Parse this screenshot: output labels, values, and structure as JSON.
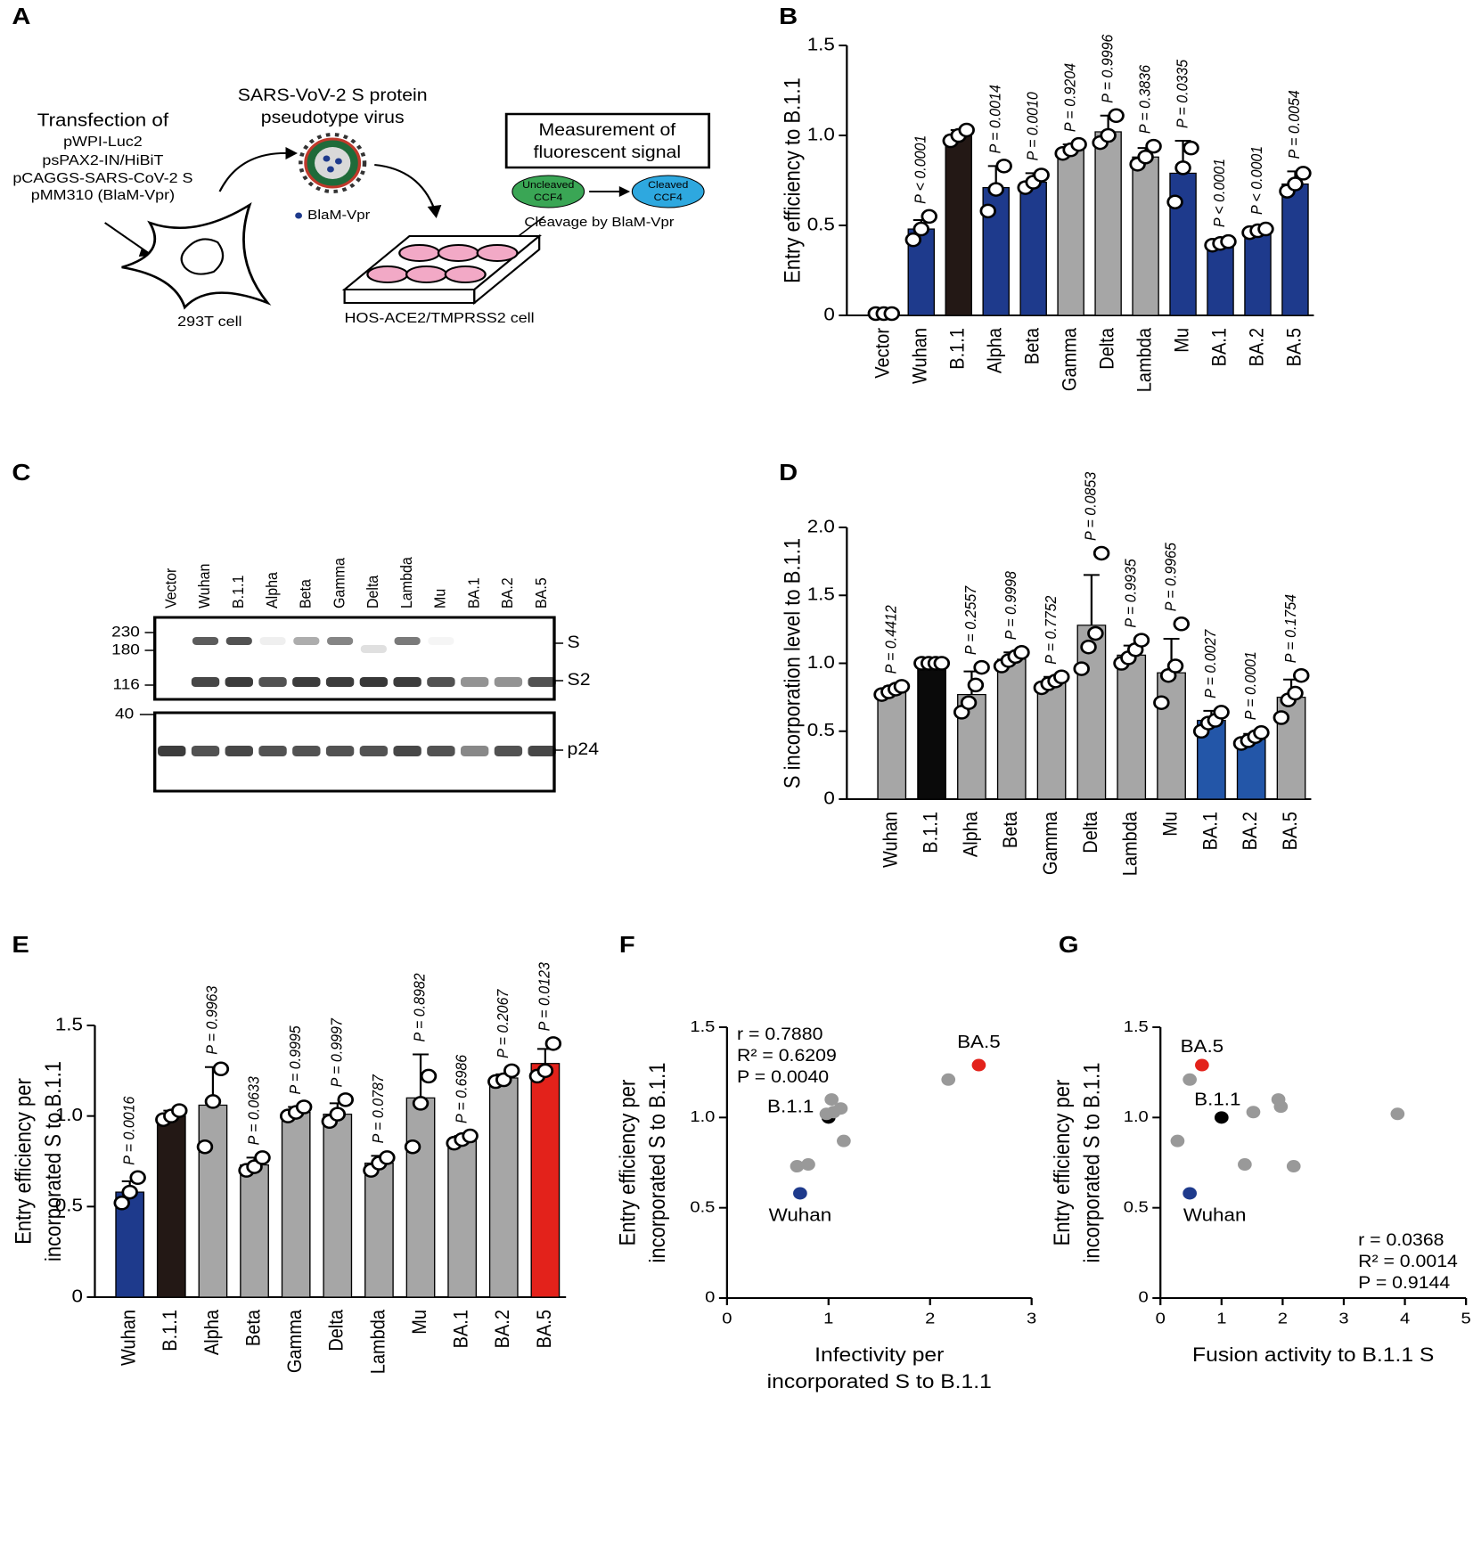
{
  "panel_labels": [
    "A",
    "B",
    "C",
    "D",
    "E",
    "F",
    "G"
  ],
  "diagram": {
    "transfection": "Transfection of",
    "plasmids": [
      "pWPI-Luc2",
      "psPAX2-IN/HiBiT",
      "pCAGGS-SARS-CoV-2 S",
      "pMM310 (BlaM-Vpr)"
    ],
    "virus": [
      "SARS-VoV-2 S protein",
      "pseudotype virus"
    ],
    "blam": "BlaM-Vpr",
    "measurement": [
      "Measurement of",
      "fluorescent signal"
    ],
    "uncleaved": [
      "Uncleaved",
      "CCF4"
    ],
    "cleaved": [
      "Cleaved",
      "CCF4"
    ],
    "cleavage": "Cleavage by BlaM-Vpr",
    "cell_293t": "293T cell",
    "hos": "HOS-ACE2/TMPRSS2 cell"
  },
  "blot": {
    "lanes": [
      "Vector",
      "Wuhan",
      "B.1.1",
      "Alpha",
      "Beta",
      "Gamma",
      "Delta",
      "Lambda",
      "Mu",
      "BA.1",
      "BA.2",
      "BA.5"
    ],
    "markers": [
      230,
      180,
      116,
      40
    ],
    "bands": [
      "S",
      "S2",
      "p24"
    ]
  },
  "chart_data": [
    {
      "type": "bar",
      "ylabel": "Entry efficiency to B.1.1",
      "categories": [
        "Vector",
        "Wuhan",
        "B.1.1",
        "Alpha",
        "Beta",
        "Gamma",
        "Delta",
        "Lambda",
        "Mu",
        "BA.1",
        "BA.2",
        "BA.5"
      ],
      "values": [
        0.01,
        0.48,
        1.0,
        0.71,
        0.74,
        0.92,
        1.02,
        0.88,
        0.79,
        0.4,
        0.47,
        0.73
      ],
      "errors": [
        null,
        0.05,
        0.03,
        0.12,
        0.05,
        0.03,
        0.09,
        0.05,
        0.18,
        0.02,
        0.02,
        0.07
      ],
      "points": [
        [
          0.01,
          0.01,
          0.01
        ],
        [
          0.42,
          0.48,
          0.55
        ],
        [
          0.97,
          1.0,
          1.03
        ],
        [
          0.58,
          0.7,
          0.83
        ],
        [
          0.71,
          0.74,
          0.78
        ],
        [
          0.9,
          0.92,
          0.95
        ],
        [
          0.96,
          1.0,
          1.11
        ],
        [
          0.84,
          0.88,
          0.94
        ],
        [
          0.63,
          0.82,
          0.93
        ],
        [
          0.39,
          0.4,
          0.41
        ],
        [
          0.46,
          0.47,
          0.48
        ],
        [
          0.69,
          0.73,
          0.79
        ]
      ],
      "colors": [
        "#ffffff",
        "#1e3a8c",
        "#231815",
        "#1e3a8c",
        "#1e3a8c",
        "#a6a6a6",
        "#a6a6a6",
        "#a6a6a6",
        "#1e3a8c",
        "#1e3a8c",
        "#1e3a8c",
        "#1e3a8c"
      ],
      "annotations": [
        null,
        "P < 0.0001",
        null,
        "P = 0.0014",
        "P = 0.0010",
        "P = 0.9204",
        "P = 0.9996",
        "P = 0.3836",
        "P = 0.0335",
        "P < 0.0001",
        "P < 0.0001",
        "P = 0.0054"
      ],
      "annotation_colors": [
        null,
        "#1e3a8c",
        null,
        "#1e3a8c",
        "#1e3a8c",
        "#999999",
        "#999999",
        "#999999",
        "#1e3a8c",
        "#1e3a8c",
        "#1e3a8c",
        "#1e3a8c"
      ],
      "ylim": [
        0,
        1.5
      ],
      "yticks": [
        0,
        0.5,
        {
          "value": 1,
          "label": "1.0"
        },
        1.5
      ]
    },
    {
      "type": "bar",
      "ylabel": "S incorporation level to B.1.1",
      "categories": [
        "Wuhan",
        "B.1.1",
        "Alpha",
        "Beta",
        "Gamma",
        "Delta",
        "Lambda",
        "Mu",
        "BA.1",
        "BA.2",
        "BA.5"
      ],
      "values": [
        0.8,
        1.0,
        0.77,
        1.03,
        0.86,
        1.28,
        1.06,
        0.93,
        0.58,
        0.44,
        0.75
      ],
      "errors": [
        0.03,
        0.01,
        0.17,
        0.05,
        0.04,
        0.37,
        0.07,
        0.25,
        0.07,
        0.04,
        0.13
      ],
      "points": [
        [
          0.77,
          0.79,
          0.81,
          0.83
        ],
        [
          1.0,
          1.0,
          1.0,
          1.0
        ],
        [
          0.64,
          0.71,
          0.84,
          0.97
        ],
        [
          0.98,
          1.02,
          1.05,
          1.08
        ],
        [
          0.82,
          0.85,
          0.87,
          0.9
        ],
        [
          0.96,
          1.12,
          1.22,
          1.81
        ],
        [
          1.0,
          1.04,
          1.1,
          1.17
        ],
        [
          0.71,
          0.91,
          0.98,
          1.29
        ],
        [
          0.5,
          0.56,
          0.58,
          0.64
        ],
        [
          0.41,
          0.43,
          0.46,
          0.49
        ],
        [
          0.6,
          0.73,
          0.78,
          0.91
        ]
      ],
      "colors": [
        "#a6a6a6",
        "#0a0a0a",
        "#a6a6a6",
        "#a6a6a6",
        "#a6a6a6",
        "#a6a6a6",
        "#a6a6a6",
        "#a6a6a6",
        "#2356a8",
        "#2356a8",
        "#a6a6a6"
      ],
      "annotations": [
        "P = 0.4412",
        null,
        "P = 0.2557",
        "P = 0.9998",
        "P = 0.7752",
        "P = 0.0853",
        "P = 0.9935",
        "P = 0.9965",
        "P = 0.0027",
        "P = 0.0001",
        "P = 0.1754"
      ],
      "annotation_colors": [
        "#999999",
        null,
        "#999999",
        "#999999",
        "#999999",
        "#999999",
        "#999999",
        "#999999",
        "#2356a8",
        "#2356a8",
        "#999999"
      ],
      "ylim": [
        0,
        2
      ],
      "yticks": [
        0,
        0.5,
        {
          "value": 1,
          "label": "1.0"
        },
        1.5,
        {
          "value": 2,
          "label": "2.0"
        }
      ]
    },
    {
      "type": "bar",
      "ylabel": [
        "Entry efficiency per",
        "incorporated S to B.1.1"
      ],
      "categories": [
        "Wuhan",
        "B.1.1",
        "Alpha",
        "Beta",
        "Gamma",
        "Delta",
        "Lambda",
        "Mu",
        "BA.1",
        "BA.2",
        "BA.5"
      ],
      "values": [
        0.58,
        1.0,
        1.06,
        0.73,
        1.02,
        1.01,
        0.74,
        1.1,
        0.87,
        1.21,
        1.29
      ],
      "errors": [
        0.06,
        0.03,
        0.21,
        0.04,
        0.03,
        0.06,
        0.04,
        0.24,
        0.02,
        0.02,
        0.08
      ],
      "points": [
        [
          0.52,
          0.58,
          0.66
        ],
        [
          0.98,
          1.0,
          1.03
        ],
        [
          0.83,
          1.08,
          1.26
        ],
        [
          0.7,
          0.72,
          0.77
        ],
        [
          1.0,
          1.02,
          1.05
        ],
        [
          0.97,
          1.01,
          1.09
        ],
        [
          0.7,
          0.74,
          0.77
        ],
        [
          0.83,
          1.07,
          1.22
        ],
        [
          0.85,
          0.87,
          0.89
        ],
        [
          1.19,
          1.2,
          1.25
        ],
        [
          1.22,
          1.25,
          1.4
        ]
      ],
      "colors": [
        "#1e3a8c",
        "#231815",
        "#a6a6a6",
        "#a6a6a6",
        "#a6a6a6",
        "#a6a6a6",
        "#a6a6a6",
        "#a6a6a6",
        "#a6a6a6",
        "#a6a6a6",
        "#e3221b"
      ],
      "annotations": [
        "P = 0.0016",
        null,
        "P = 0.9963",
        "P = 0.0633",
        "P = 0.9995",
        "P = 0.9997",
        "P = 0.0787",
        "P = 0.8982",
        "P = 0.6986",
        "P = 0.2067",
        "P = 0.0123"
      ],
      "annotation_colors": [
        "#1e3a8c",
        null,
        "#999999",
        "#999999",
        "#999999",
        "#999999",
        "#999999",
        "#999999",
        "#999999",
        "#999999",
        "#e3221b"
      ],
      "ylim": [
        0,
        1.5
      ],
      "yticks": [
        0,
        0.5,
        {
          "value": 1,
          "label": "1.0"
        },
        1.5
      ]
    },
    {
      "type": "scatter",
      "ylabel": [
        "Entry efficiency per",
        "incorporated S to B.1.1"
      ],
      "xlabel": [
        "Infectivity per",
        "incorporated S to B.1.1"
      ],
      "x": [
        0.72,
        1.0,
        1.12,
        0.69,
        0.98,
        1.05,
        0.8,
        1.03,
        1.15,
        2.18,
        2.48
      ],
      "y": [
        0.58,
        1.0,
        1.05,
        0.73,
        1.02,
        1.03,
        0.74,
        1.1,
        0.87,
        1.21,
        1.29
      ],
      "colors": [
        "#1e3a8c",
        "#000000",
        "#999999",
        "#999999",
        "#999999",
        "#999999",
        "#999999",
        "#999999",
        "#999999",
        "#999999",
        "#e3221b"
      ],
      "point_labels": [
        "Wuhan",
        "B.1.1",
        null,
        null,
        null,
        null,
        null,
        null,
        null,
        null,
        "BA.5"
      ],
      "annotations": [
        "r = 0.7880",
        "R² = 0.6209",
        "P = 0.0040"
      ],
      "xlim": [
        0,
        3
      ],
      "xticks": [
        0,
        1,
        2,
        3
      ],
      "ylim": [
        0,
        1.5
      ],
      "yticks": [
        0,
        0.5,
        {
          "value": 1,
          "label": "1.0"
        },
        1.5
      ]
    },
    {
      "type": "scatter",
      "ylabel": [
        "Entry efficiency per",
        "incorporated S to B.1.1"
      ],
      "xlabel": "Fusion activity to B.1.1 S",
      "x": [
        0.48,
        1.0,
        1.97,
        2.18,
        3.88,
        1.52,
        1.38,
        1.93,
        0.28,
        0.48,
        0.68
      ],
      "y": [
        0.58,
        1.0,
        1.06,
        0.73,
        1.02,
        1.03,
        0.74,
        1.1,
        0.87,
        1.21,
        1.29
      ],
      "colors": [
        "#1e3a8c",
        "#000000",
        "#999999",
        "#999999",
        "#999999",
        "#999999",
        "#999999",
        "#999999",
        "#999999",
        "#999999",
        "#e3221b"
      ],
      "point_labels": [
        "Wuhan",
        "B.1.1",
        null,
        null,
        null,
        null,
        null,
        null,
        null,
        null,
        "BA.5"
      ],
      "annotations": [
        "r = 0.0368",
        "R² = 0.0014",
        "P = 0.9144"
      ],
      "xlim": [
        0,
        5
      ],
      "xticks": [
        0,
        1,
        2,
        3,
        4,
        5
      ],
      "ylim": [
        0,
        1.5
      ],
      "yticks": [
        0,
        0.5,
        {
          "value": 1,
          "label": "1.0"
        },
        1.5
      ]
    }
  ]
}
